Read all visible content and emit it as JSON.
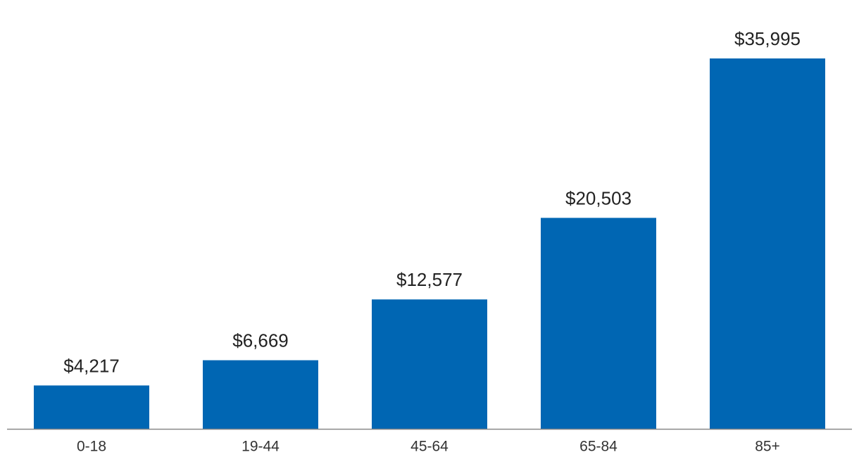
{
  "chart_data": {
    "type": "bar",
    "categories": [
      "0-18",
      "19-44",
      "45-64",
      "65-84",
      "85+"
    ],
    "values": [
      4217,
      6669,
      12577,
      20503,
      35995
    ],
    "value_labels": [
      "$4,217",
      "$6,669",
      "$12,577",
      "$20,503",
      "$35,995"
    ],
    "color": "#0066b3"
  }
}
